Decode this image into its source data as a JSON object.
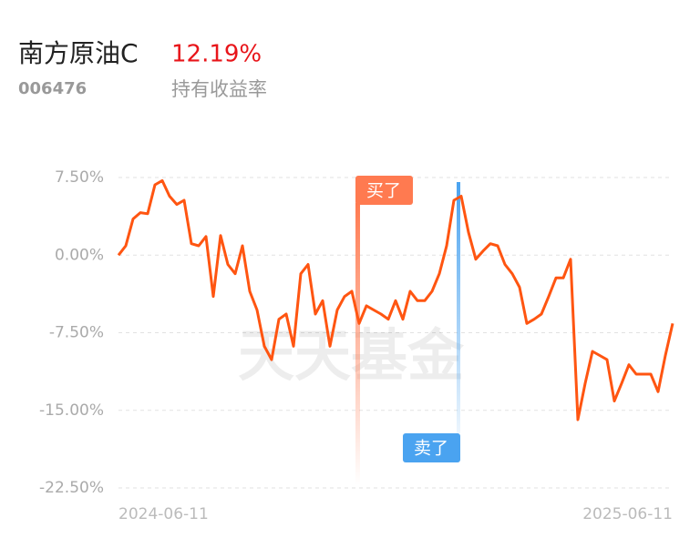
{
  "header": {
    "fund_name": "南方原油C",
    "return_value": "12.19%",
    "fund_code": "006476",
    "return_label": "持有收益率"
  },
  "chart_data": {
    "type": "line",
    "categories": [
      "2024-06-11",
      null,
      null,
      null,
      null,
      null,
      null,
      null,
      null,
      null,
      null,
      null,
      null,
      null,
      null,
      null,
      null,
      null,
      null,
      null,
      null,
      null,
      null,
      null,
      null,
      null,
      null,
      null,
      null,
      null,
      null,
      null,
      null,
      null,
      null,
      null,
      null,
      null,
      null,
      null,
      null,
      null,
      null,
      null,
      null,
      null,
      null,
      null,
      null,
      null,
      null,
      null,
      null,
      null,
      null,
      null,
      null,
      null,
      null,
      null,
      null,
      null,
      null,
      null,
      null,
      null,
      null,
      null,
      null,
      null,
      null,
      null,
      null,
      null,
      null,
      null,
      "2025-06-11"
    ],
    "values": [
      0,
      0.9,
      3.5,
      4.1,
      4.0,
      6.8,
      7.2,
      5.7,
      4.9,
      5.3,
      1.1,
      0.9,
      1.8,
      -4.0,
      1.9,
      -0.9,
      -1.8,
      0.9,
      -3.5,
      -5.3,
      -8.8,
      -10.1,
      -6.2,
      -5.7,
      -8.8,
      -1.8,
      -0.9,
      -5.7,
      -4.4,
      -8.8,
      -5.3,
      -4.0,
      -3.5,
      -6.6,
      -4.9,
      -5.3,
      -5.7,
      -6.2,
      -4.4,
      -6.2,
      -3.5,
      -4.4,
      -4.4,
      -3.5,
      -1.8,
      0.9,
      5.3,
      5.7,
      2.2,
      -0.4,
      0.4,
      1.1,
      0.9,
      -0.9,
      -1.8,
      -3.1,
      -6.6,
      -6.2,
      -5.7,
      -4.0,
      -2.2,
      -2.2,
      -0.4,
      -15.9,
      -12.4,
      -9.3,
      -9.7,
      -10.1,
      -14.1,
      -12.4,
      -10.6,
      -11.5,
      -11.5,
      -11.5,
      -13.2,
      -9.7,
      -6.6
    ],
    "color": "#ff5511",
    "ylim": [
      -22.5,
      7.5
    ],
    "yticks": [
      {
        "value": 7.5,
        "label": "7.50%"
      },
      {
        "value": 0,
        "label": "0.00%"
      },
      {
        "value": -7.5,
        "label": "-7.50%"
      },
      {
        "value": -15,
        "label": "-15.00%"
      },
      {
        "value": -22.5,
        "label": "-22.50%"
      }
    ],
    "grid": true,
    "annotations": {
      "buy": "买了",
      "sell": "卖了"
    },
    "watermark": "天天基金"
  }
}
